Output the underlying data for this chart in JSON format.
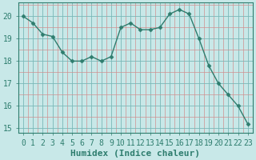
{
  "x": [
    0,
    1,
    2,
    3,
    4,
    5,
    6,
    7,
    8,
    9,
    10,
    11,
    12,
    13,
    14,
    15,
    16,
    17,
    18,
    19,
    20,
    21,
    22,
    23
  ],
  "y": [
    20.0,
    19.7,
    19.2,
    19.1,
    18.4,
    18.0,
    18.0,
    18.2,
    18.0,
    18.2,
    19.5,
    19.7,
    19.4,
    19.4,
    19.5,
    20.1,
    20.3,
    20.1,
    19.0,
    17.8,
    17.0,
    16.5,
    16.0,
    15.2
  ],
  "line_color": "#2e7d6e",
  "marker": "D",
  "marker_size": 2.5,
  "bg_color": "#c8e8e8",
  "major_grid_color": "#7ab8b8",
  "minor_grid_color": "#d09090",
  "xlabel": "Humidex (Indice chaleur)",
  "ylim": [
    14.8,
    20.6
  ],
  "xlim": [
    -0.5,
    23.5
  ],
  "yticks": [
    15,
    16,
    17,
    18,
    19,
    20
  ],
  "xticks": [
    0,
    1,
    2,
    3,
    4,
    5,
    6,
    7,
    8,
    9,
    10,
    11,
    12,
    13,
    14,
    15,
    16,
    17,
    18,
    19,
    20,
    21,
    22,
    23
  ],
  "tick_color": "#2e7d6e",
  "label_color": "#2e7d6e",
  "font_size": 7,
  "xlabel_fontsize": 8,
  "linewidth": 1.0
}
